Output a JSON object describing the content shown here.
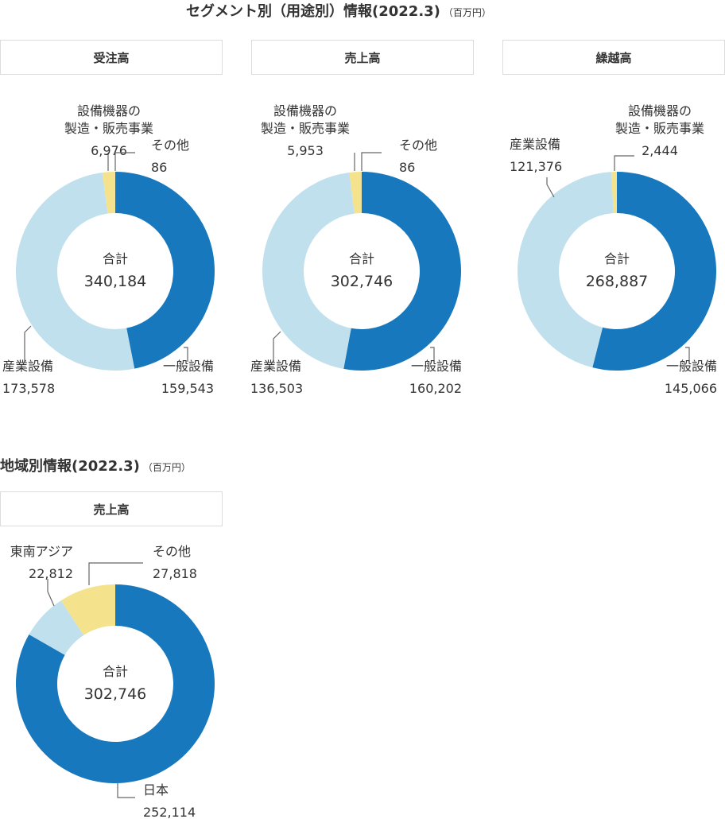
{
  "segment": {
    "title": "セグメント別（用途別）情報(2022.3)",
    "unit": "（百万円）"
  },
  "region": {
    "title": "地域別情報(2022.3)",
    "unit": "（百万円）"
  },
  "colors": {
    "dark_blue": "#1878bd",
    "light_blue": "#bfe0ec",
    "yellow": "#f5e28c",
    "leader": "#666666"
  },
  "chart_data": [
    {
      "type": "pie",
      "style": "donut",
      "panel": "受注高",
      "total_label": "合計",
      "total_text": "340,184",
      "slices": [
        {
          "label": "一般設備",
          "value": 159543,
          "value_text": "159,543",
          "color": "#1878bd"
        },
        {
          "label": "産業設備",
          "value": 173578,
          "value_text": "173,578",
          "color": "#bfe0ec"
        },
        {
          "label": "設備機器の\n製造・販売事業",
          "value": 6976,
          "value_text": "6,976",
          "color": "#f5e28c"
        },
        {
          "label": "その他",
          "value": 86,
          "value_text": "86",
          "color": "#bfe0ec"
        }
      ]
    },
    {
      "type": "pie",
      "style": "donut",
      "panel": "売上高",
      "total_label": "合計",
      "total_text": "302,746",
      "slices": [
        {
          "label": "一般設備",
          "value": 160202,
          "value_text": "160,202",
          "color": "#1878bd"
        },
        {
          "label": "産業設備",
          "value": 136503,
          "value_text": "136,503",
          "color": "#bfe0ec"
        },
        {
          "label": "設備機器の\n製造・販売事業",
          "value": 5953,
          "value_text": "5,953",
          "color": "#f5e28c"
        },
        {
          "label": "その他",
          "value": 86,
          "value_text": "86",
          "color": "#bfe0ec"
        }
      ]
    },
    {
      "type": "pie",
      "style": "donut",
      "panel": "繰越高",
      "total_label": "合計",
      "total_text": "268,887",
      "slices": [
        {
          "label": "一般設備",
          "value": 145066,
          "value_text": "145,066",
          "color": "#1878bd"
        },
        {
          "label": "産業設備",
          "value": 121376,
          "value_text": "121,376",
          "color": "#bfe0ec"
        },
        {
          "label": "設備機器の\n製造・販売事業",
          "value": 2444,
          "value_text": "2,444",
          "color": "#f5e28c"
        }
      ]
    },
    {
      "type": "pie",
      "style": "donut",
      "panel": "売上高",
      "total_label": "合計",
      "total_text": "302,746",
      "slices": [
        {
          "label": "日本",
          "value": 252114,
          "value_text": "252,114",
          "color": "#1878bd"
        },
        {
          "label": "東南アジア",
          "value": 22812,
          "value_text": "22,812",
          "color": "#bfe0ec"
        },
        {
          "label": "その他",
          "value": 27818,
          "value_text": "27,818",
          "color": "#f5e28c"
        }
      ]
    }
  ]
}
